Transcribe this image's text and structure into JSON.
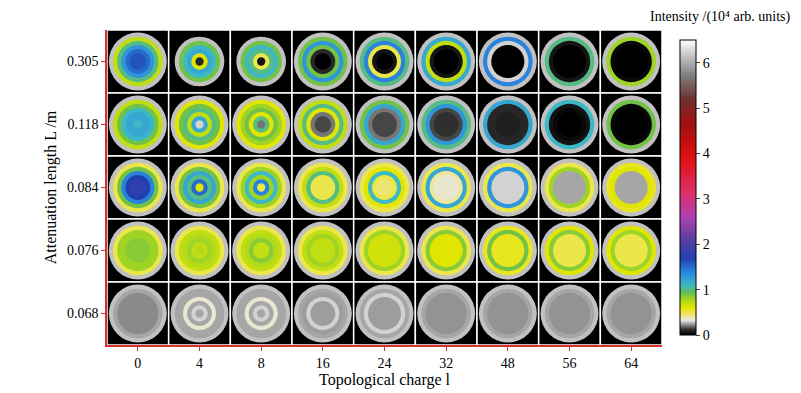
{
  "chart_data": {
    "type": "image_grid",
    "x_label": "Topological charge l",
    "y_label": "Attenuation length L /m",
    "colorbar_title": "Intensity /(10⁴ arb. units)",
    "categories": [
      0,
      4,
      8,
      16,
      24,
      32,
      48,
      56,
      64
    ],
    "rows": [
      0.305,
      0.118,
      0.084,
      0.076,
      0.068
    ],
    "colorbar": {
      "range": [
        0,
        6.5
      ],
      "ticks": [
        0,
        1,
        2,
        3,
        4,
        5,
        6
      ]
    },
    "cells": [
      [
        [
          0.28,
          0.7,
          1.0,
          1.3,
          1.5,
          1.6,
          1.6
        ],
        [
          0,
          0.28,
          0.9,
          1.1,
          1.2,
          0.6,
          0.1
        ],
        [
          0,
          0.28,
          0.9,
          1.1,
          1.0,
          0.5,
          0.05
        ],
        [
          0.28,
          0.9,
          1.3,
          0.9,
          0.1,
          0,
          0
        ],
        [
          0.28,
          1.0,
          1.4,
          0.5,
          0.05,
          0,
          0
        ],
        [
          0.28,
          1.2,
          0.7,
          0.05,
          0,
          0,
          0
        ],
        [
          0.28,
          1.4,
          0.3,
          0,
          0,
          0,
          0
        ],
        [
          0.28,
          1.0,
          0.05,
          0,
          0,
          0,
          0
        ],
        [
          0.28,
          0.8,
          0.02,
          0,
          0,
          0,
          0
        ]
      ],
      [
        [
          0.28,
          0.7,
          0.9,
          1.1,
          1.2,
          1.2,
          1.1
        ],
        [
          0.28,
          0.6,
          0.9,
          1.0,
          0.7,
          1.2,
          0.3
        ],
        [
          0.28,
          0.6,
          0.8,
          0.9,
          0.6,
          1.0,
          0.2
        ],
        [
          0.28,
          0.7,
          1.0,
          0.6,
          0.2,
          0.15,
          0.15
        ],
        [
          0.28,
          0.9,
          1.2,
          0.2,
          0.15,
          0.15,
          0.15
        ],
        [
          0.28,
          1.0,
          1.3,
          0.15,
          0.12,
          0.12,
          0.12
        ],
        [
          0.28,
          1.2,
          0.1,
          0.1,
          0.08,
          0.08,
          0.08
        ],
        [
          0.28,
          1.1,
          0.05,
          0.02,
          0,
          0,
          0
        ],
        [
          0.28,
          0.9,
          0.02,
          0,
          0,
          0,
          0
        ]
      ],
      [
        [
          0.28,
          0.5,
          0.9,
          1.4,
          1.7,
          1.8,
          1.8
        ],
        [
          0.28,
          0.5,
          0.9,
          1.2,
          1.0,
          1.5,
          0.6
        ],
        [
          0.28,
          0.5,
          0.8,
          1.1,
          0.8,
          1.4,
          0.5
        ],
        [
          0.28,
          0.5,
          0.7,
          1.0,
          0.5,
          0.5,
          0.5
        ],
        [
          0.28,
          0.5,
          0.6,
          1.1,
          0.5,
          0.45,
          0.45
        ],
        [
          0.28,
          0.5,
          1.2,
          0.4,
          0.35,
          0.35,
          0.35
        ],
        [
          0.28,
          0.5,
          1.3,
          0.3,
          0.3,
          0.3,
          0.3
        ],
        [
          0.28,
          0.5,
          0.8,
          0.25,
          0.25,
          0.25,
          0.25
        ],
        [
          0.28,
          0.55,
          0.6,
          0.25,
          0.25,
          0.25,
          0.25
        ]
      ],
      [
        [
          0.28,
          0.5,
          0.8,
          0.8,
          0.85,
          0.85,
          0.85
        ],
        [
          0.28,
          0.5,
          0.7,
          0.75,
          0.8,
          0.7,
          0.75
        ],
        [
          0.28,
          0.5,
          0.7,
          0.75,
          0.85,
          0.7,
          0.7
        ],
        [
          0.28,
          0.5,
          0.7,
          0.8,
          0.7,
          0.7,
          0.7
        ],
        [
          0.28,
          0.5,
          0.8,
          0.65,
          0.65,
          0.65,
          0.65
        ],
        [
          0.28,
          0.5,
          0.85,
          0.6,
          0.6,
          0.6,
          0.6
        ],
        [
          0.28,
          0.55,
          0.9,
          0.55,
          0.55,
          0.55,
          0.55
        ],
        [
          0.28,
          0.6,
          0.85,
          0.5,
          0.5,
          0.5,
          0.5
        ],
        [
          0.28,
          0.6,
          0.8,
          0.5,
          0.5,
          0.5,
          0.5
        ]
      ],
      [
        [
          0.28,
          0.25,
          0.22,
          0.22,
          0.22,
          0.22,
          0.22
        ],
        [
          0.28,
          0.25,
          0.25,
          0.35,
          0.25,
          0.3,
          0.25
        ],
        [
          0.28,
          0.25,
          0.25,
          0.35,
          0.25,
          0.3,
          0.25
        ],
        [
          0.28,
          0.25,
          0.24,
          0.3,
          0.24,
          0.24,
          0.24
        ],
        [
          0.28,
          0.25,
          0.3,
          0.24,
          0.24,
          0.24,
          0.24
        ],
        [
          0.28,
          0.25,
          0.23,
          0.23,
          0.23,
          0.23,
          0.23
        ],
        [
          0.28,
          0.25,
          0.23,
          0.23,
          0.23,
          0.23,
          0.23
        ],
        [
          0.28,
          0.25,
          0.23,
          0.23,
          0.23,
          0.23,
          0.23
        ],
        [
          0.28,
          0.25,
          0.23,
          0.23,
          0.23,
          0.23,
          0.23
        ]
      ]
    ]
  }
}
